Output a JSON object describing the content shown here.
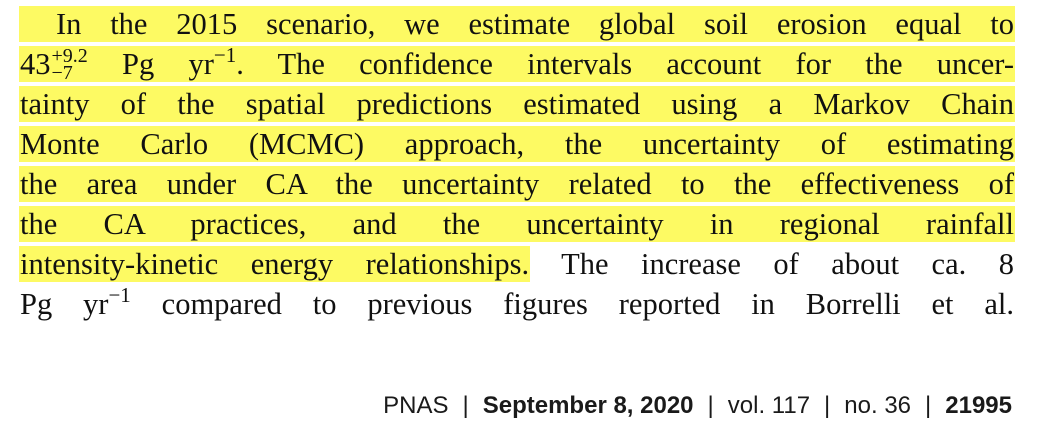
{
  "body_text": {
    "line1": "In the 2015 scenario, we estimate global soil erosion equal to",
    "line2_value": "43",
    "line2_upper": "+9.2",
    "line2_lower": "−7",
    "line2_unit": " Pg yr",
    "line2_exp": "−1",
    "line2_rest": ". The confidence intervals account for the uncer-",
    "line3": "tainty of the spatial predictions estimated using a Markov Chain",
    "line4": "Monte Carlo (MCMC) approach, the uncertainty of estimating",
    "line5": "the area under CA the uncertainty related to the effectiveness of",
    "line6": "the CA practices, and the uncertainty in regional rainfall",
    "line7_highlighted": "intensity-kinetic energy relationships.",
    "line7_rest": " The increase of about ca. 8",
    "line8_unit": "Pg yr",
    "line8_exp": "−1",
    "line8_rest": " compared to previous figures reported in Borrelli et al."
  },
  "footer": {
    "journal": "PNAS",
    "date": "September 8, 2020",
    "volume": "vol. 117",
    "issue": "no. 36",
    "page": "21995"
  },
  "colors": {
    "highlight": "#fdfa63",
    "text": "#111111"
  }
}
